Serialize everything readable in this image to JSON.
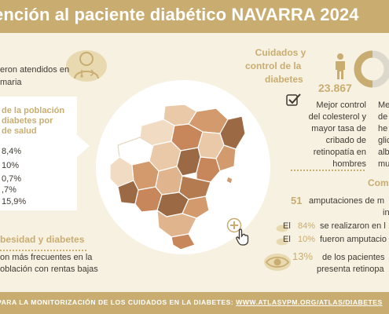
{
  "title": "ención al paciente diabético NAVARRA 2024",
  "left": {
    "attended_line1": "eron atendidos en",
    "attended_line2": "maria",
    "panel_title": [
      "de la población",
      "diabetes por",
      "de salud"
    ],
    "percentages": [
      "8,4%",
      "10%",
      "0,7%",
      ",7%",
      "15,9%"
    ],
    "obesity_heading": "besidad y diabetes",
    "obesity_text": [
      "on más frecuentes en la",
      "oblación con rentas bajas"
    ]
  },
  "right": {
    "care_heading": [
      "Cuidados y",
      "control de la",
      "diabetes"
    ],
    "men_count": "23.867",
    "men_text": [
      "Mejor control",
      "del colesterol y",
      "mayor tasa de",
      "cribado de",
      "retinopatía en",
      "hombres"
    ],
    "women_text": [
      "Me",
      "de",
      "he",
      "glic",
      "alb",
      "mu"
    ],
    "complications_heading": "Com",
    "amputations_number": "51",
    "amputations_text": [
      "amputaciones de m",
      "in"
    ],
    "stat1_pct": "84%",
    "stat1_prefix": "El",
    "stat1_text": "se realizaron en l",
    "stat2_pct": "10%",
    "stat2_prefix": "El",
    "stat2_text": "fueron amputacio",
    "eye_pct": "13%",
    "eye_text": [
      "de los pacientes",
      "presenta retinopa"
    ]
  },
  "footer": {
    "prefix": "PARA LA MONITORIZACIÓN DE LOS CUIDADOS EN LA DIABETES:",
    "url": "WWW.ATLASVPM.ORG/ATLAS/DIABETES"
  },
  "colors": {
    "header": "#c9ad70",
    "background": "#f7f1e1",
    "map_dark": "#9b6a45",
    "map_mid": "#d29a6d",
    "map_light": "#e9c9a7"
  },
  "icons": {
    "doctor": "doctor-icon",
    "man": "man-icon",
    "check": "check-icon",
    "zoom": "zoom-plus-icon",
    "cursor": "hand-cursor-icon",
    "eye": "eye-icon"
  }
}
